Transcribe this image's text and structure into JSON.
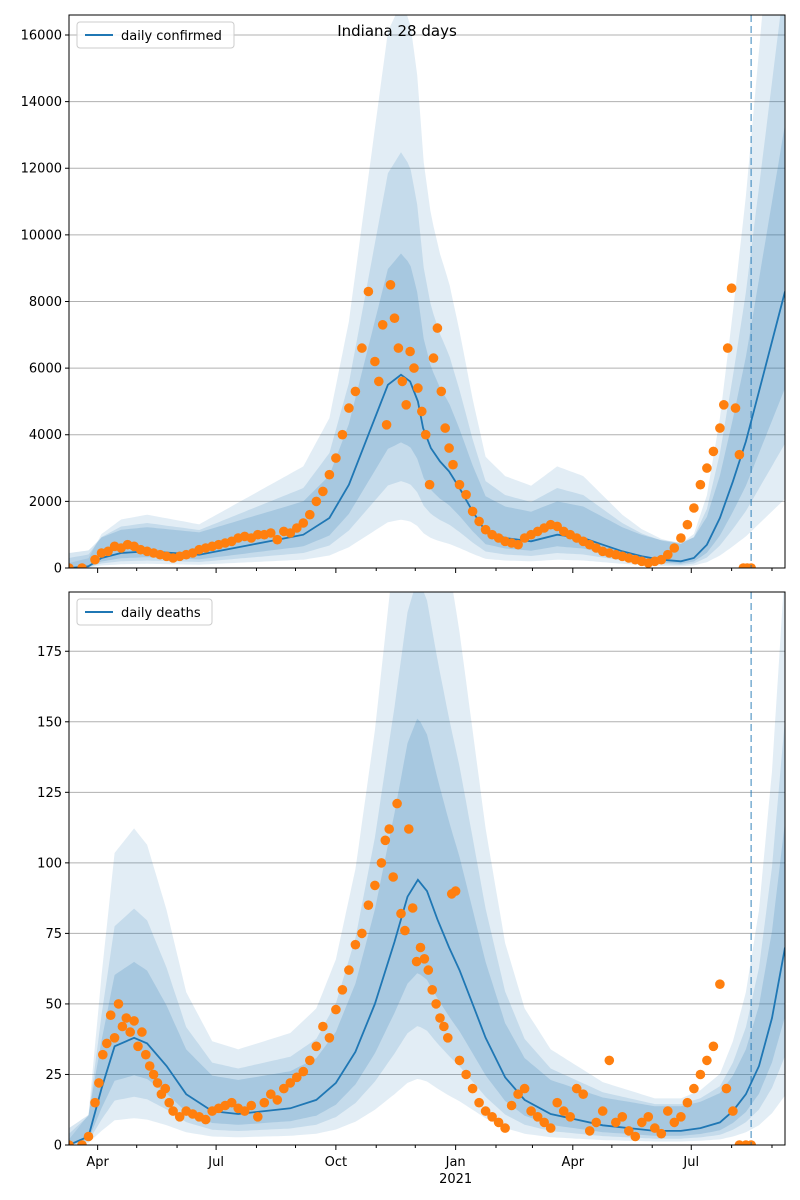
{
  "figure": {
    "title": "Indiana 28 days"
  },
  "chart_data": [
    {
      "type": "line",
      "title": "Indiana 28 days",
      "legend": {
        "label": "daily confirmed",
        "placement": "top-left"
      },
      "y_ticks": [
        0,
        2000,
        4000,
        6000,
        8000,
        10000,
        12000,
        14000,
        16000
      ],
      "ylim": [
        0,
        16600
      ],
      "x_tick_labels": [
        "Apr",
        "Jul",
        "Oct",
        "Jan",
        "Apr",
        "Jul"
      ],
      "x_year_label": "2021",
      "xlim_days": [
        0,
        550
      ],
      "grid": "horizontal",
      "forecast_start_day": 524,
      "color_line": "#1f77b4",
      "color_points": "#ff7f0e",
      "series": [
        {
          "name": "daily confirmed",
          "kind": "model-mean",
          "x": [
            0,
            15,
            25,
            40,
            60,
            80,
            100,
            120,
            140,
            160,
            180,
            200,
            215,
            230,
            245,
            255,
            262,
            268,
            272,
            278,
            285,
            292,
            300,
            310,
            320,
            335,
            355,
            375,
            395,
            410,
            425,
            440,
            455,
            470,
            480,
            490,
            500,
            510,
            520,
            530,
            540,
            550
          ],
          "y": [
            0,
            50,
            300,
            450,
            500,
            450,
            400,
            550,
            700,
            850,
            1000,
            1500,
            2500,
            4000,
            5500,
            5800,
            5600,
            5000,
            4200,
            3600,
            3200,
            2900,
            2400,
            1700,
            1100,
            900,
            800,
            1000,
            900,
            700,
            500,
            350,
            250,
            200,
            300,
            700,
            1500,
            2600,
            3800,
            5300,
            6800,
            8300
          ]
        },
        {
          "name": "",
          "kind": "observed",
          "x": [
            0,
            10,
            20,
            25,
            30,
            35,
            40,
            45,
            50,
            55,
            60,
            65,
            70,
            75,
            80,
            85,
            90,
            95,
            100,
            105,
            110,
            115,
            120,
            125,
            130,
            135,
            140,
            145,
            150,
            155,
            160,
            165,
            170,
            175,
            180,
            185,
            190,
            195,
            200,
            205,
            210,
            215,
            220,
            225,
            230,
            235,
            238,
            241,
            244,
            247,
            250,
            253,
            256,
            259,
            262,
            265,
            268,
            271,
            274,
            277,
            280,
            283,
            286,
            289,
            292,
            295,
            300,
            305,
            310,
            315,
            320,
            325,
            330,
            335,
            340,
            345,
            350,
            355,
            360,
            365,
            370,
            375,
            380,
            385,
            390,
            395,
            400,
            405,
            410,
            415,
            420,
            425,
            430,
            435,
            440,
            445,
            450,
            455,
            460,
            465,
            470,
            475,
            480,
            485,
            490,
            495,
            500,
            503,
            506,
            509,
            512,
            515,
            518,
            521,
            524
          ],
          "y": [
            0,
            0,
            250,
            450,
            500,
            650,
            600,
            700,
            650,
            550,
            500,
            450,
            400,
            350,
            300,
            350,
            400,
            450,
            550,
            600,
            650,
            700,
            750,
            800,
            900,
            950,
            900,
            1000,
            1000,
            1050,
            850,
            1100,
            1050,
            1200,
            1350,
            1600,
            2000,
            2300,
            2800,
            3300,
            4000,
            4800,
            5300,
            6600,
            8300,
            6200,
            5600,
            7300,
            4300,
            8500,
            7500,
            6600,
            5600,
            4900,
            6500,
            6000,
            5400,
            4700,
            4000,
            2500,
            6300,
            7200,
            5300,
            4200,
            3600,
            3100,
            2500,
            2200,
            1700,
            1400,
            1150,
            1000,
            900,
            800,
            750,
            700,
            900,
            1000,
            1100,
            1200,
            1300,
            1250,
            1100,
            1000,
            900,
            800,
            700,
            600,
            500,
            450,
            400,
            350,
            300,
            250,
            200,
            150,
            200,
            250,
            400,
            600,
            900,
            1300,
            1800,
            2500,
            3000,
            3500,
            4200,
            4900,
            6600,
            8400,
            4800,
            3400,
            0,
            0,
            0
          ]
        }
      ]
    },
    {
      "type": "line",
      "legend": {
        "label": "daily deaths",
        "placement": "top-left"
      },
      "y_ticks": [
        0,
        25,
        50,
        75,
        100,
        125,
        150,
        175
      ],
      "ylim": [
        0,
        196
      ],
      "x_tick_labels": [
        "Apr",
        "Jul",
        "Oct",
        "Jan",
        "Apr",
        "Jul"
      ],
      "x_year_label": "2021",
      "xlim_days": [
        0,
        550
      ],
      "grid": "horizontal",
      "forecast_start_day": 524,
      "color_line": "#1f77b4",
      "color_points": "#ff7f0e",
      "series": [
        {
          "name": "daily deaths",
          "kind": "model-mean",
          "x": [
            0,
            15,
            25,
            35,
            50,
            60,
            75,
            90,
            110,
            130,
            150,
            170,
            190,
            205,
            220,
            235,
            250,
            260,
            268,
            275,
            283,
            292,
            300,
            310,
            320,
            335,
            350,
            370,
            390,
            410,
            430,
            450,
            470,
            485,
            500,
            510,
            520,
            530,
            540,
            550
          ],
          "y": [
            0,
            3,
            20,
            35,
            38,
            36,
            28,
            18,
            12,
            11,
            12,
            13,
            16,
            22,
            33,
            50,
            72,
            88,
            94,
            90,
            80,
            70,
            62,
            50,
            38,
            24,
            16,
            11,
            9,
            7,
            6,
            5,
            5,
            6,
            8,
            12,
            18,
            28,
            45,
            70
          ]
        },
        {
          "name": "",
          "kind": "observed",
          "x": [
            0,
            10,
            15,
            20,
            23,
            26,
            29,
            32,
            35,
            38,
            41,
            44,
            47,
            50,
            53,
            56,
            59,
            62,
            65,
            68,
            71,
            74,
            77,
            80,
            85,
            90,
            95,
            100,
            105,
            110,
            115,
            120,
            125,
            130,
            135,
            140,
            145,
            150,
            155,
            160,
            165,
            170,
            175,
            180,
            185,
            190,
            195,
            200,
            205,
            210,
            215,
            220,
            225,
            230,
            235,
            240,
            243,
            246,
            249,
            252,
            255,
            258,
            261,
            264,
            267,
            270,
            273,
            276,
            279,
            282,
            285,
            288,
            291,
            294,
            297,
            300,
            305,
            310,
            315,
            320,
            325,
            330,
            335,
            340,
            345,
            350,
            355,
            360,
            365,
            370,
            375,
            380,
            385,
            390,
            395,
            400,
            405,
            410,
            415,
            420,
            425,
            430,
            435,
            440,
            445,
            450,
            455,
            460,
            465,
            470,
            475,
            480,
            485,
            490,
            495,
            500,
            505,
            510,
            515,
            520,
            524
          ],
          "y": [
            0,
            0,
            3,
            15,
            22,
            32,
            36,
            46,
            38,
            50,
            42,
            45,
            40,
            44,
            35,
            40,
            32,
            28,
            25,
            22,
            18,
            20,
            15,
            12,
            10,
            12,
            11,
            10,
            9,
            12,
            13,
            14,
            15,
            13,
            12,
            14,
            10,
            15,
            18,
            16,
            20,
            22,
            24,
            26,
            30,
            35,
            42,
            38,
            48,
            55,
            62,
            71,
            75,
            85,
            92,
            100,
            108,
            112,
            95,
            121,
            82,
            76,
            112,
            84,
            65,
            70,
            66,
            62,
            55,
            50,
            45,
            42,
            38,
            89,
            90,
            30,
            25,
            20,
            15,
            12,
            10,
            8,
            6,
            14,
            18,
            20,
            12,
            10,
            8,
            6,
            15,
            12,
            10,
            20,
            18,
            5,
            8,
            12,
            30,
            8,
            10,
            5,
            3,
            8,
            10,
            6,
            4,
            12,
            8,
            10,
            15,
            20,
            25,
            30,
            35,
            57,
            20,
            12,
            0,
            0,
            0
          ]
        }
      ]
    }
  ]
}
